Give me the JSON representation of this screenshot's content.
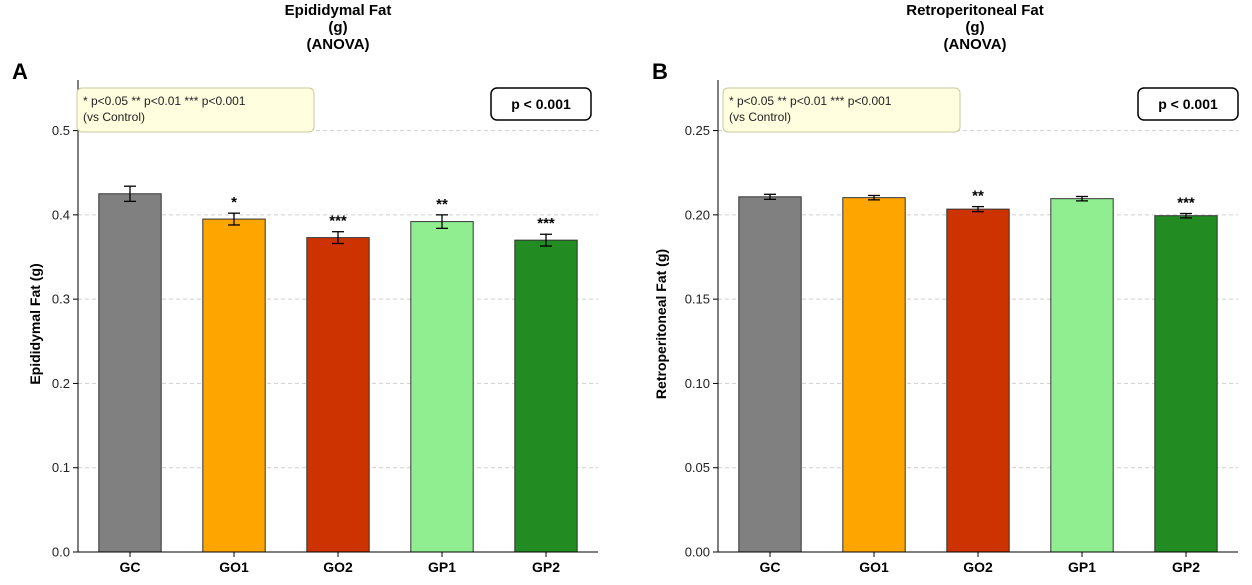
{
  "chart_data": [
    {
      "type": "bar",
      "panel_label": "A",
      "title_lines": [
        "Epididymal Fat",
        "(g)",
        "(ANOVA)"
      ],
      "ylabel": "Epididymal Fat (g)",
      "categories": [
        "GC",
        "GO1",
        "GO2",
        "GP1",
        "GP2"
      ],
      "values": [
        0.425,
        0.395,
        0.373,
        0.392,
        0.37
      ],
      "errors": [
        0.009,
        0.007,
        0.007,
        0.008,
        0.007
      ],
      "significance": [
        "",
        "*",
        "***",
        "**",
        "***"
      ],
      "colors": [
        "#808080",
        "#FFA500",
        "#CC3300",
        "#90EE90",
        "#228B22"
      ],
      "ylim": [
        0,
        0.56
      ],
      "yticks": [
        0.0,
        0.1,
        0.2,
        0.3,
        0.4,
        0.5
      ],
      "ytick_labels": [
        "0.0",
        "0.1",
        "0.2",
        "0.3",
        "0.4",
        "0.5"
      ],
      "grid": true,
      "legend": {
        "placement": "top-left",
        "line1": "* p<0.05  ** p<0.01  *** p<0.001",
        "line2": "(vs Control)"
      },
      "p_box": {
        "placement": "top-right",
        "text": "p < 0.001"
      }
    },
    {
      "type": "bar",
      "panel_label": "B",
      "title_lines": [
        "Retroperitoneal Fat",
        "(g)",
        "(ANOVA)"
      ],
      "ylabel": "Retroperitoneal Fat (g)",
      "categories": [
        "GC",
        "GO1",
        "GO2",
        "GP1",
        "GP2"
      ],
      "values": [
        0.2107,
        0.2102,
        0.2034,
        0.2096,
        0.1995
      ],
      "errors": [
        0.0015,
        0.0013,
        0.0015,
        0.0013,
        0.0013
      ],
      "significance": [
        "",
        "",
        "**",
        "",
        "***"
      ],
      "colors": [
        "#808080",
        "#FFA500",
        "#CC3300",
        "#90EE90",
        "#228B22"
      ],
      "ylim": [
        0,
        0.28
      ],
      "yticks": [
        0.0,
        0.05,
        0.1,
        0.15,
        0.2,
        0.25
      ],
      "ytick_labels": [
        "0.00",
        "0.05",
        "0.10",
        "0.15",
        "0.20",
        "0.25"
      ],
      "grid": true,
      "legend": {
        "placement": "top-left",
        "line1": "* p<0.05  ** p<0.01  *** p<0.001",
        "line2": "(vs Control)"
      },
      "p_box": {
        "placement": "top-right",
        "text": "p < 0.001"
      }
    }
  ]
}
